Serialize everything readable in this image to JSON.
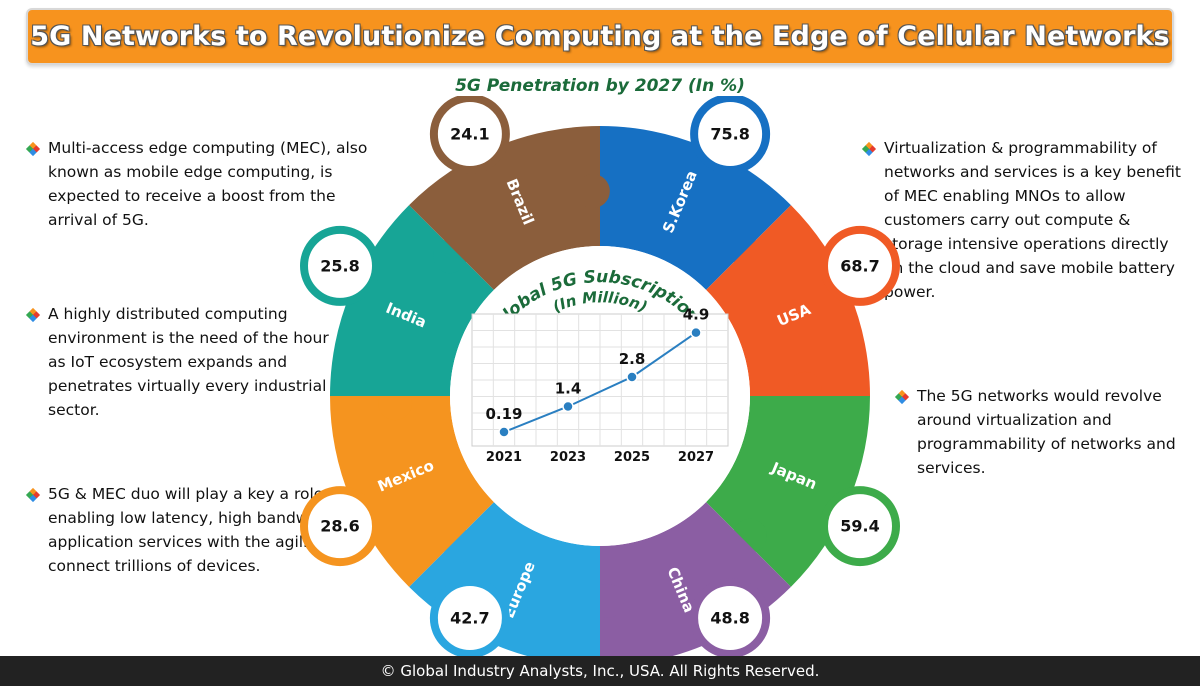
{
  "title": "5G Networks to Revolutionize Computing at the Edge of Cellular Networks",
  "subtitle": "5G Penetration by 2027 (In %)",
  "bullets_left": [
    "Multi-access edge computing (MEC), also known as mobile edge computing, is expected to receive a boost from the arrival of 5G.",
    "A highly distributed computing environment is the need of the hour as IoT ecosystem expands and penetrates virtually every industrial sector.",
    "5G & MEC duo will play a key a role in enabling low latency, high bandwidth application services with the agility to connect trillions of devices."
  ],
  "bullets_right": [
    "Virtualization & programmability of networks and services is a key benefit of MEC enabling MNOs to allow customers carry out compute & storage intensive operations directly on the cloud and save mobile battery power.",
    "The 5G networks would revolve around virtualization and programmability of networks and services."
  ],
  "colors": {
    "banner": "#f7931e",
    "subtitle": "#1b6b3a",
    "line": "#2a7fc1"
  },
  "chart_data": [
    {
      "type": "pie",
      "title": "5G Penetration by 2027 (In %)",
      "categories": [
        "S.Korea",
        "USA",
        "Japan",
        "China",
        "Europe",
        "Mexico",
        "India",
        "Brazil"
      ],
      "values": [
        75.8,
        68.7,
        59.4,
        48.8,
        42.7,
        28.6,
        25.8,
        24.1
      ],
      "colors": [
        "#1670c3",
        "#f05a25",
        "#3dab4a",
        "#8b5ea3",
        "#2aa6e0",
        "#f5941f",
        "#17a596",
        "#8b5e3c"
      ],
      "value_labels": [
        "75.8",
        "68.7",
        "59.4",
        "48.8",
        "42.7",
        "28.6",
        "25.8",
        "24.1"
      ]
    },
    {
      "type": "line",
      "title": "Global 5G Subscriptions (In Million)",
      "x": [
        "2021",
        "2023",
        "2025",
        "2027"
      ],
      "values": [
        0.19,
        1.4,
        2.8,
        4.9
      ],
      "value_labels": [
        "0.19",
        "1.4",
        "2.8",
        "4.9"
      ],
      "ylim": [
        0,
        5.5
      ],
      "grid": true
    }
  ],
  "footer": "© Global Industry Analysts, Inc., USA. All Rights Reserved."
}
